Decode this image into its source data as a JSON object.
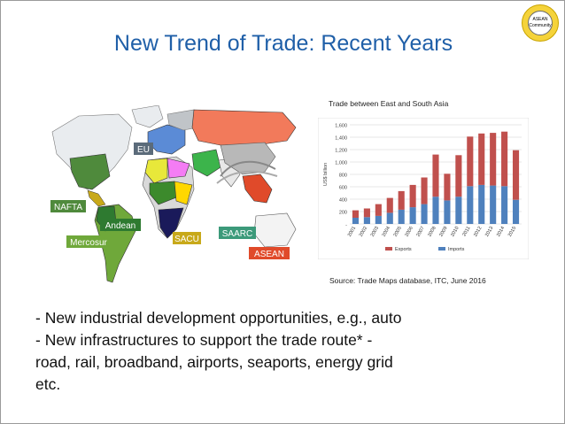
{
  "slide": {
    "title": "New Trend of Trade: Recent Years",
    "logo_text": [
      "ASEAN",
      "Community"
    ],
    "lines": [
      "- New industrial development opportunities, e.g., auto",
      "- New infrastructures to support the trade route* -",
      "road, rail, broadband, airports, seaports, energy grid",
      "etc."
    ],
    "chart_caption": "Trade between East and South Asia",
    "source": "Source:  Trade Maps database, ITC, June 2016"
  },
  "map": {
    "labels": [
      "EU",
      "NAFTA",
      "Andean",
      "Mercosur",
      "SACU",
      "SAARC",
      "ASEAN"
    ],
    "colors": {
      "eu": "#5b6b7a",
      "nafta": "#4f8a3c",
      "andean": "#2e7a30",
      "mercosur": "#6fa83a",
      "sacu": "#c8a91a",
      "saarc": "#3c9a7a",
      "asean": "#e04a2a"
    }
  },
  "chart_data": {
    "type": "bar",
    "stacked": true,
    "categories": [
      "2001",
      "2002",
      "2003",
      "2004",
      "2005",
      "2006",
      "2007",
      "2008",
      "2009",
      "2010",
      "2011",
      "2012",
      "2013",
      "2014",
      "2015"
    ],
    "series": [
      {
        "name": "Exports",
        "color": "#c0504d",
        "values": [
          120,
          140,
          190,
          240,
          300,
          360,
          430,
          680,
          430,
          670,
          800,
          830,
          850,
          880,
          800
        ]
      },
      {
        "name": "Imports",
        "color": "#4f81bd",
        "values": [
          100,
          110,
          130,
          180,
          230,
          270,
          320,
          440,
          380,
          440,
          610,
          630,
          620,
          610,
          390
        ]
      }
    ],
    "ylabel": "US$ billion",
    "ylim": [
      0,
      1600
    ],
    "yticks": [
      "-",
      "200",
      "400",
      "600",
      "800",
      "1,000",
      "1,200",
      "1,400",
      "1,600"
    ],
    "grid": true,
    "legend": "bottom"
  }
}
